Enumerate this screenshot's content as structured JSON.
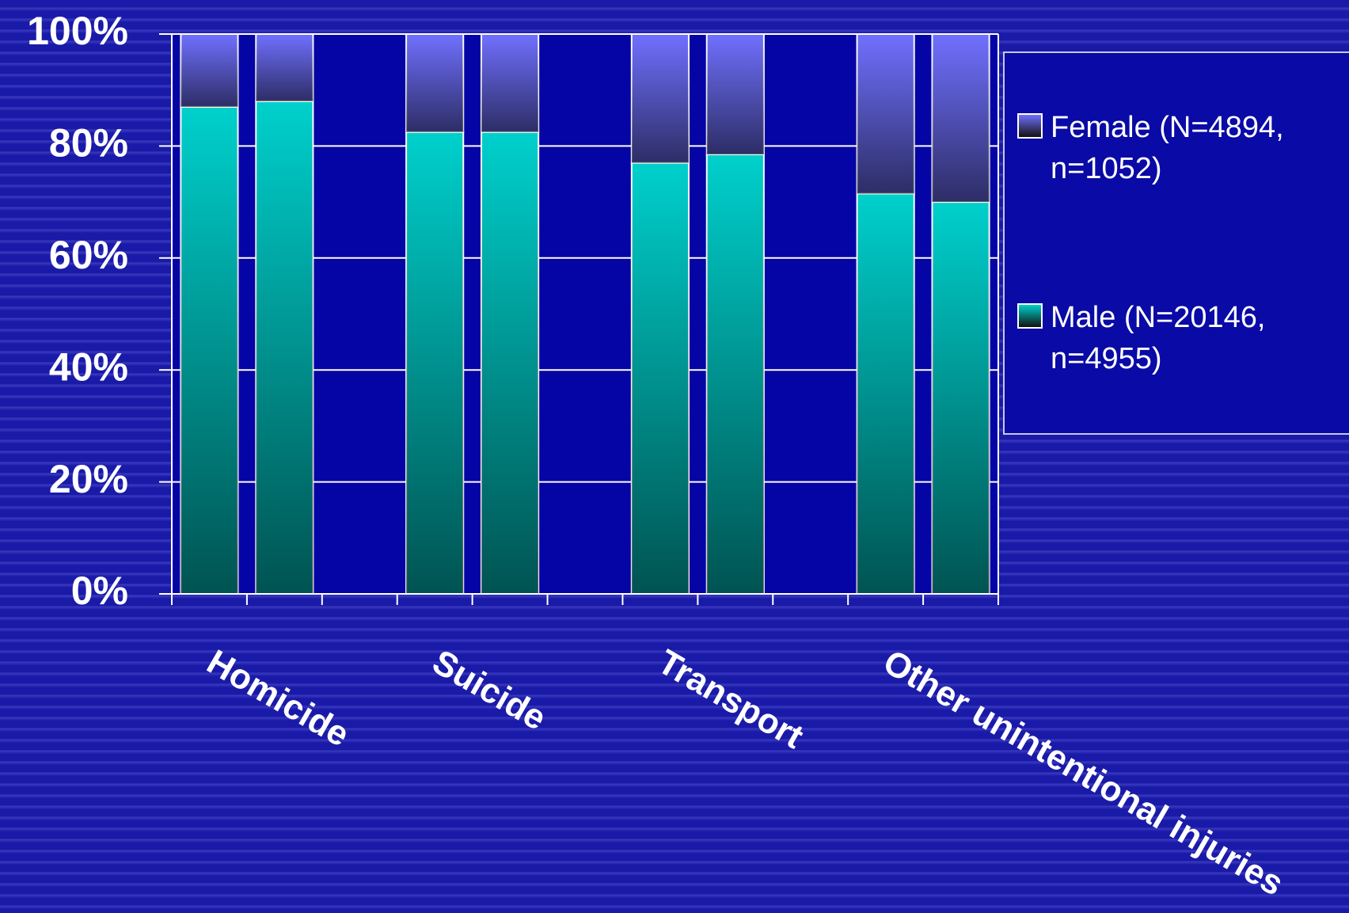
{
  "chart_data": {
    "type": "stacked-bar",
    "categories": [
      "Homicide",
      null,
      "Suicide",
      null,
      "Transport",
      null,
      "Other unintentional injuries",
      null
    ],
    "series": [
      {
        "name": "Male (N=20146, n=4955)",
        "color": "#00d0cc",
        "values": [
          87,
          88,
          82.5,
          82.5,
          77,
          78.5,
          71.5,
          70
        ]
      },
      {
        "name": "Female (N=4894, n=1052)",
        "color": "#7070ff",
        "values": [
          13,
          12,
          17.5,
          17.5,
          23,
          21.5,
          28.5,
          30
        ]
      }
    ],
    "ylim": [
      0,
      100
    ],
    "yticks": [
      {
        "value": 0,
        "label": "0%"
      },
      {
        "value": 20,
        "label": "20%"
      },
      {
        "value": 40,
        "label": "40%"
      },
      {
        "value": 60,
        "label": "60%"
      },
      {
        "value": 80,
        "label": "80%"
      },
      {
        "value": 100,
        "label": "100%"
      }
    ],
    "grid": true
  }
}
